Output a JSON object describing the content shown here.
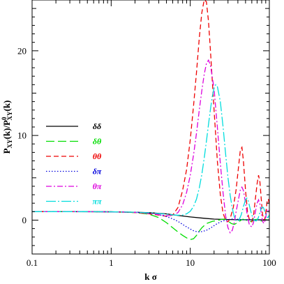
{
  "chart_data": {
    "type": "line",
    "xlabel": "k σ",
    "ylabel": "P_XY(k)/P^0_XY(k)",
    "xscale": "log",
    "xlim": [
      0.1,
      100
    ],
    "ylim": [
      -4,
      26
    ],
    "xticks": [
      {
        "value": 0.1,
        "label": "0.1"
      },
      {
        "value": 1,
        "label": "1"
      },
      {
        "value": 10,
        "label": "10"
      },
      {
        "value": 100,
        "label": "100"
      }
    ],
    "yticks": [
      {
        "value": 0,
        "label": "0"
      },
      {
        "value": 10,
        "label": "10"
      },
      {
        "value": 20,
        "label": "20"
      }
    ],
    "grid": false,
    "legend_position": "left-middle",
    "series": [
      {
        "name": "δδ",
        "color": "#000000",
        "dash": "solid",
        "points": [
          [
            0.1,
            1.0
          ],
          [
            0.3,
            1.0
          ],
          [
            1,
            0.98
          ],
          [
            2,
            0.93
          ],
          [
            3,
            0.88
          ],
          [
            5,
            0.74
          ],
          [
            7,
            0.55
          ],
          [
            10,
            0.38
          ],
          [
            15,
            0.22
          ],
          [
            20,
            0.12
          ],
          [
            30,
            0.07
          ],
          [
            50,
            0.04
          ],
          [
            100,
            0.03
          ]
        ]
      },
      {
        "name": "δθ",
        "color": "#00dd00",
        "dash": "long-dash",
        "points": [
          [
            0.1,
            1.0
          ],
          [
            0.5,
            1.0
          ],
          [
            1,
            0.98
          ],
          [
            2,
            0.9
          ],
          [
            3,
            0.7
          ],
          [
            4,
            0.3
          ],
          [
            5,
            -0.3
          ],
          [
            6,
            -0.9
          ],
          [
            7,
            -1.4
          ],
          [
            8,
            -1.8
          ],
          [
            9,
            -2.1
          ],
          [
            10,
            -2.3
          ],
          [
            11,
            -2.2
          ],
          [
            12,
            -1.8
          ],
          [
            13,
            -1.3
          ],
          [
            14,
            -0.9
          ],
          [
            16,
            -0.4
          ],
          [
            19,
            -0.15
          ],
          [
            22,
            -0.05
          ],
          [
            25,
            0.1
          ],
          [
            28,
            0.12
          ],
          [
            30,
            -0.1
          ],
          [
            33,
            -0.4
          ],
          [
            36,
            -0.5
          ],
          [
            40,
            -0.3
          ],
          [
            43,
            -0.05
          ],
          [
            46,
            0.1
          ],
          [
            50,
            0.05
          ],
          [
            55,
            -0.2
          ],
          [
            60,
            -0.15
          ],
          [
            65,
            0.05
          ],
          [
            70,
            0.1
          ],
          [
            75,
            -0.1
          ],
          [
            80,
            -0.1
          ],
          [
            85,
            0.05
          ],
          [
            90,
            0.05
          ],
          [
            100,
            0.0
          ]
        ]
      },
      {
        "name": "θθ",
        "color": "#ee0000",
        "dash": "dashed",
        "points": [
          [
            0.1,
            1.0
          ],
          [
            0.5,
            1.0
          ],
          [
            1,
            0.98
          ],
          [
            2,
            0.9
          ],
          [
            3,
            0.75
          ],
          [
            4,
            0.6
          ],
          [
            5,
            0.45
          ],
          [
            6,
            0.6
          ],
          [
            7,
            1.5
          ],
          [
            8,
            3.5
          ],
          [
            9,
            6.0
          ],
          [
            10,
            9.5
          ],
          [
            11,
            13.5
          ],
          [
            12,
            17.5
          ],
          [
            13,
            21.5
          ],
          [
            14,
            24.5
          ],
          [
            15,
            26.0
          ],
          [
            16,
            25.8
          ],
          [
            17,
            23.5
          ],
          [
            18,
            20.0
          ],
          [
            20,
            13.0
          ],
          [
            22,
            7.0
          ],
          [
            24,
            3.0
          ],
          [
            26,
            0.8
          ],
          [
            28,
            0.0
          ],
          [
            30,
            -0.2
          ],
          [
            32,
            0.2
          ],
          [
            35,
            1.5
          ],
          [
            38,
            3.6
          ],
          [
            41,
            6.5
          ],
          [
            43,
            8.3
          ],
          [
            45,
            8.6
          ],
          [
            47,
            7.0
          ],
          [
            50,
            3.5
          ],
          [
            53,
            0.9
          ],
          [
            56,
            0.05
          ],
          [
            60,
            -0.2
          ],
          [
            63,
            0.5
          ],
          [
            66,
            2.2
          ],
          [
            70,
            4.3
          ],
          [
            73,
            5.3
          ],
          [
            76,
            4.5
          ],
          [
            79,
            2.5
          ],
          [
            82,
            0.7
          ],
          [
            85,
            0.0
          ],
          [
            88,
            0.2
          ],
          [
            91,
            1.2
          ],
          [
            94,
            2.3
          ],
          [
            97,
            2.5
          ],
          [
            100,
            1.8
          ]
        ]
      },
      {
        "name": "δπ",
        "color": "#0000dd",
        "dash": "dotted",
        "points": [
          [
            0.1,
            1.0
          ],
          [
            0.5,
            1.0
          ],
          [
            1,
            0.98
          ],
          [
            2,
            0.93
          ],
          [
            3,
            0.83
          ],
          [
            4,
            0.65
          ],
          [
            5,
            0.42
          ],
          [
            6,
            0.15
          ],
          [
            7,
            -0.15
          ],
          [
            8,
            -0.5
          ],
          [
            9,
            -0.8
          ],
          [
            10,
            -1.05
          ],
          [
            11,
            -1.25
          ],
          [
            12,
            -1.35
          ],
          [
            13,
            -1.4
          ],
          [
            14,
            -1.35
          ],
          [
            16,
            -1.2
          ],
          [
            18,
            -0.95
          ],
          [
            20,
            -0.65
          ],
          [
            22,
            -0.4
          ],
          [
            25,
            -0.15
          ],
          [
            28,
            0.0
          ],
          [
            32,
            0.1
          ],
          [
            36,
            0.15
          ],
          [
            40,
            0.1
          ],
          [
            45,
            0.05
          ],
          [
            50,
            0.05
          ],
          [
            60,
            0.02
          ],
          [
            70,
            0.02
          ],
          [
            80,
            0.02
          ],
          [
            100,
            0.01
          ]
        ]
      },
      {
        "name": "θπ",
        "color": "#dd00dd",
        "dash": "dash-dot",
        "points": [
          [
            0.1,
            1.0
          ],
          [
            0.5,
            1.0
          ],
          [
            1,
            0.98
          ],
          [
            2,
            0.92
          ],
          [
            3,
            0.8
          ],
          [
            4,
            0.65
          ],
          [
            5,
            0.52
          ],
          [
            6,
            0.55
          ],
          [
            7,
            0.9
          ],
          [
            8,
            1.8
          ],
          [
            9,
            3.3
          ],
          [
            10,
            5.3
          ],
          [
            11,
            7.7
          ],
          [
            12,
            10.3
          ],
          [
            13,
            13.0
          ],
          [
            14,
            15.3
          ],
          [
            15,
            17.2
          ],
          [
            16,
            18.5
          ],
          [
            17,
            18.9
          ],
          [
            18,
            18.3
          ],
          [
            20,
            15.5
          ],
          [
            22,
            11.0
          ],
          [
            24,
            6.7
          ],
          [
            26,
            3.2
          ],
          [
            28,
            0.5
          ],
          [
            30,
            -0.9
          ],
          [
            32,
            -1.5
          ],
          [
            34,
            -1.2
          ],
          [
            36,
            -0.3
          ],
          [
            38,
            1.0
          ],
          [
            41,
            2.6
          ],
          [
            43,
            3.6
          ],
          [
            45,
            3.9
          ],
          [
            47,
            3.5
          ],
          [
            50,
            2.0
          ],
          [
            53,
            0.4
          ],
          [
            56,
            -0.6
          ],
          [
            60,
            -0.8
          ],
          [
            63,
            -0.3
          ],
          [
            66,
            0.8
          ],
          [
            70,
            2.0
          ],
          [
            73,
            2.4
          ],
          [
            76,
            1.9
          ],
          [
            79,
            0.8
          ],
          [
            82,
            -0.1
          ],
          [
            85,
            -0.4
          ],
          [
            88,
            -0.1
          ],
          [
            91,
            0.6
          ],
          [
            94,
            1.2
          ],
          [
            97,
            1.3
          ],
          [
            100,
            0.9
          ]
        ]
      },
      {
        "name": "ππ",
        "color": "#00dddd",
        "dash": "long-dash-dot",
        "points": [
          [
            0.1,
            1.0
          ],
          [
            0.5,
            1.0
          ],
          [
            1,
            0.98
          ],
          [
            2,
            0.93
          ],
          [
            3,
            0.86
          ],
          [
            4,
            0.78
          ],
          [
            5,
            0.7
          ],
          [
            6,
            0.62
          ],
          [
            7,
            0.58
          ],
          [
            8,
            0.6
          ],
          [
            9,
            0.75
          ],
          [
            10,
            1.05
          ],
          [
            11,
            1.6
          ],
          [
            12,
            2.5
          ],
          [
            13,
            3.8
          ],
          [
            14,
            5.4
          ],
          [
            15,
            7.3
          ],
          [
            16,
            9.3
          ],
          [
            17,
            11.3
          ],
          [
            18,
            13.1
          ],
          [
            19,
            14.6
          ],
          [
            20,
            15.6
          ],
          [
            21,
            16.0
          ],
          [
            22,
            15.8
          ],
          [
            24,
            14.0
          ],
          [
            26,
            11.0
          ],
          [
            28,
            7.8
          ],
          [
            30,
            5.0
          ],
          [
            32,
            2.9
          ],
          [
            34,
            1.4
          ],
          [
            36,
            0.4
          ],
          [
            38,
            -0.1
          ],
          [
            41,
            -0.05
          ],
          [
            44,
            0.6
          ],
          [
            47,
            1.6
          ],
          [
            50,
            2.4
          ],
          [
            52,
            2.6
          ],
          [
            54,
            2.3
          ],
          [
            57,
            1.4
          ],
          [
            60,
            0.6
          ],
          [
            64,
            0.0
          ],
          [
            68,
            -0.1
          ],
          [
            72,
            0.2
          ],
          [
            76,
            0.9
          ],
          [
            80,
            1.5
          ],
          [
            84,
            1.5
          ],
          [
            88,
            1.0
          ],
          [
            92,
            0.4
          ],
          [
            96,
            0.3
          ],
          [
            100,
            0.6
          ]
        ]
      }
    ]
  }
}
